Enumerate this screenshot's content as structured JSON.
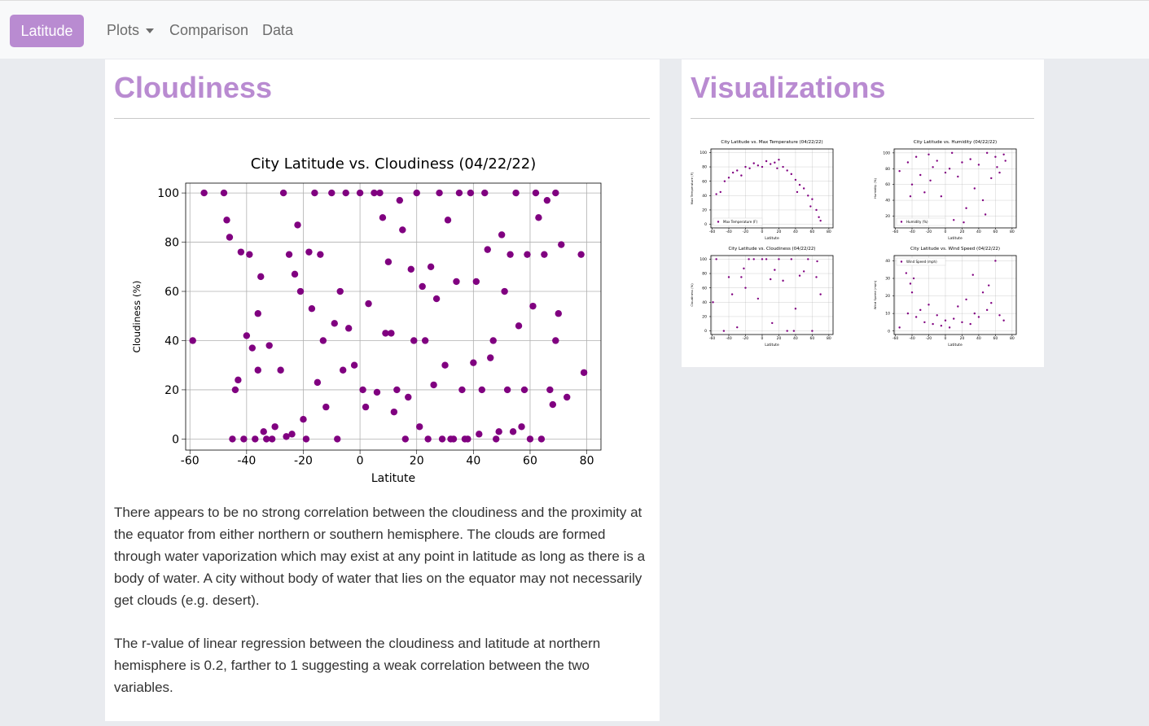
{
  "nav": {
    "brand": "Latitude",
    "links": [
      "Plots",
      "Comparison",
      "Data"
    ]
  },
  "main": {
    "heading": "Cloudiness",
    "paragraphs": [
      "There appears to be no strong correlation between the cloudiness and the proximity at the equator from either northern or southern hemisphere. The clouds are formed through water vaporization which may exist at any point in latitude as long as there is a body of water. A city without body of water that lies on the equator may not necessarily get clouds (e.g. desert).",
      "The r-value of linear regression between the cloudiness and latitude at northern hemisphere is 0.2, farther to 1 suggesting a weak correlation between the two variables."
    ]
  },
  "sidebar": {
    "heading": "Visualizations"
  },
  "chart_data": [
    {
      "type": "scatter",
      "title": "City Latitude vs. Cloudiness (04/22/22)",
      "x_label": "Latitute",
      "y_label": "Cloudiness (%)",
      "color": "purple",
      "grid": true,
      "xlim": [
        -61.5,
        85
      ],
      "ylim": [
        -4.5,
        104
      ],
      "xticks": [
        -60,
        -40,
        -20,
        0,
        20,
        40,
        60,
        80
      ],
      "yticks": [
        0,
        20,
        40,
        60,
        80,
        100
      ],
      "x": [
        -55,
        -47,
        -46,
        -45,
        -44,
        -42,
        -40,
        -39,
        -38,
        -37,
        -36,
        -35,
        -34,
        -33,
        -32,
        -30,
        -28,
        -26,
        -25,
        -23,
        -22,
        -21,
        -20,
        -19,
        -18,
        -16,
        -15,
        -14,
        -12,
        -10,
        -9,
        -8,
        -6,
        -5,
        -4,
        -2,
        0,
        1,
        3,
        5,
        6,
        8,
        9,
        10,
        12,
        13,
        14,
        15,
        16,
        17,
        18,
        19,
        20,
        21,
        22,
        24,
        25,
        27,
        28,
        29,
        30,
        31,
        33,
        34,
        35,
        36,
        38,
        39,
        40,
        41,
        42,
        43,
        44,
        45,
        46,
        47,
        48,
        50,
        51,
        52,
        53,
        54,
        55,
        56,
        58,
        59,
        60,
        61,
        62,
        63,
        64,
        65,
        66,
        67,
        68,
        69,
        70,
        71,
        73,
        78,
        -59,
        -48,
        -43,
        -41,
        -36,
        -31,
        -27,
        -24,
        -17,
        -13,
        -7,
        2,
        7,
        11,
        23,
        26,
        32,
        37,
        49,
        57,
        69,
        79
      ],
      "values": [
        100,
        89,
        82,
        0,
        20,
        76,
        42,
        75,
        37,
        0,
        51,
        66,
        3,
        0,
        38,
        5,
        28,
        1,
        75,
        67,
        87,
        60,
        8,
        0,
        76,
        100,
        23,
        75,
        13,
        100,
        47,
        0,
        28,
        100,
        45,
        30,
        100,
        20,
        55,
        100,
        19,
        90,
        43,
        72,
        11,
        20,
        97,
        85,
        0,
        17,
        69,
        40,
        100,
        5,
        62,
        0,
        70,
        57,
        100,
        0,
        30,
        89,
        0,
        64,
        100,
        20,
        0,
        100,
        31,
        64,
        2,
        20,
        100,
        77,
        33,
        40,
        0,
        83,
        60,
        20,
        75,
        3,
        100,
        46,
        20,
        75,
        0,
        54,
        100,
        90,
        0,
        75,
        97,
        20,
        14,
        100,
        51,
        79,
        17,
        75,
        40,
        100,
        24,
        0,
        28,
        0,
        100,
        2,
        53,
        40,
        60,
        13,
        100,
        43,
        40,
        22,
        0,
        0,
        3,
        5,
        40,
        27
      ]
    },
    {
      "type": "scatter",
      "title": "City Latitude vs. Max Temperature (04/22/22)",
      "x_label": "Latitute",
      "y_label": "Max Temperature (F)",
      "color": "purple",
      "grid": true,
      "legend": "lower left",
      "series_name": "Max Temperature (F)",
      "xlim": [
        -61.5,
        85
      ],
      "ylim": [
        -5,
        105
      ],
      "xticks": [
        -60,
        -40,
        -20,
        0,
        20,
        40,
        60,
        80
      ],
      "yticks": [
        0,
        20,
        40,
        60,
        80,
        100
      ],
      "x": [
        -55,
        -45,
        -40,
        -35,
        -30,
        -25,
        -20,
        -15,
        -10,
        -5,
        0,
        5,
        10,
        15,
        20,
        25,
        30,
        35,
        40,
        45,
        50,
        55,
        60,
        65,
        68,
        70,
        -50,
        18,
        42,
        58
      ],
      "values": [
        42,
        60,
        65,
        72,
        75,
        68,
        80,
        78,
        85,
        82,
        80,
        88,
        84,
        86,
        90,
        80,
        75,
        70,
        62,
        55,
        50,
        40,
        35,
        20,
        10,
        5,
        45,
        78,
        45,
        25
      ]
    },
    {
      "type": "scatter",
      "title": "City Latitude vs. Humidity (04/22/22)",
      "x_label": "Latitute",
      "y_label": "Humidity (%)",
      "color": "purple",
      "grid": true,
      "legend": "lower left",
      "series_name": "Humidity (%)",
      "xlim": [
        -61.5,
        85
      ],
      "ylim": [
        5,
        105
      ],
      "xticks": [
        -60,
        -40,
        -20,
        0,
        20,
        40,
        60,
        80
      ],
      "yticks": [
        20,
        40,
        60,
        80,
        100
      ],
      "x": [
        -55,
        -45,
        -40,
        -35,
        -30,
        -25,
        -20,
        -15,
        -10,
        -5,
        0,
        5,
        10,
        15,
        20,
        25,
        30,
        35,
        40,
        45,
        50,
        55,
        60,
        65,
        70,
        -42,
        -18,
        8,
        22,
        48,
        62,
        72
      ],
      "values": [
        77,
        88,
        60,
        95,
        72,
        50,
        98,
        82,
        90,
        45,
        75,
        80,
        15,
        70,
        88,
        30,
        92,
        55,
        85,
        40,
        100,
        68,
        95,
        75,
        98,
        45,
        65,
        100,
        12,
        22,
        82,
        90
      ]
    },
    {
      "type": "scatter",
      "title": "City Latitude vs. Cloudiness (04/22/22)",
      "x_label": "Latitute",
      "y_label": "Cloudiness (%)",
      "color": "purple",
      "grid": true,
      "xlim": [
        -61.5,
        85
      ],
      "ylim": [
        -5,
        105
      ],
      "xticks": [
        -60,
        -40,
        -20,
        0,
        20,
        40,
        60,
        80
      ],
      "yticks": [
        0,
        20,
        40,
        60,
        80,
        100
      ],
      "x": [
        -55,
        -46,
        -40,
        -36,
        -30,
        -25,
        -20,
        -16,
        -10,
        -5,
        0,
        5,
        10,
        15,
        20,
        25,
        30,
        35,
        40,
        45,
        50,
        55,
        60,
        65,
        70,
        -59,
        -22,
        12,
        38,
        66
      ],
      "values": [
        100,
        0,
        75,
        51,
        5,
        75,
        60,
        100,
        100,
        45,
        100,
        100,
        72,
        85,
        100,
        70,
        0,
        100,
        31,
        77,
        83,
        100,
        0,
        75,
        51,
        40,
        87,
        11,
        0,
        97
      ]
    },
    {
      "type": "scatter",
      "title": "City Latitude vs. Wind Speed (04/22/22)",
      "x_label": "Latitute",
      "y_label": "Wind Speed (mph)",
      "color": "purple",
      "grid": true,
      "legend": "upper left",
      "series_name": "Wind Speed (mph)",
      "xlim": [
        -61.5,
        85
      ],
      "ylim": [
        -2,
        43
      ],
      "xticks": [
        -60,
        -40,
        -20,
        0,
        20,
        40,
        60,
        80
      ],
      "yticks": [
        0,
        10,
        20,
        30,
        40
      ],
      "x": [
        -55,
        -47,
        -45,
        -42,
        -40,
        -35,
        -30,
        -25,
        -20,
        -15,
        -10,
        -5,
        0,
        5,
        10,
        15,
        20,
        25,
        30,
        35,
        40,
        45,
        50,
        55,
        60,
        65,
        70,
        -38,
        33,
        52
      ],
      "values": [
        2,
        33,
        10,
        27,
        22,
        8,
        12,
        5,
        15,
        4,
        9,
        3,
        6,
        2,
        7,
        14,
        5,
        18,
        4,
        10,
        8,
        22,
        12,
        16,
        40,
        9,
        6,
        30,
        32,
        26
      ]
    }
  ]
}
